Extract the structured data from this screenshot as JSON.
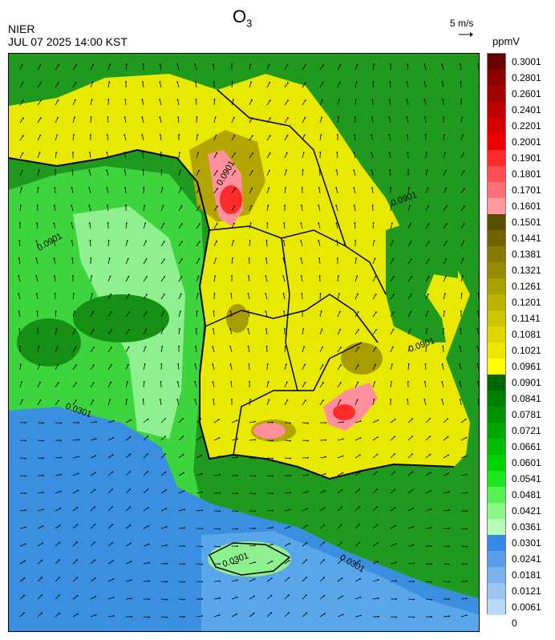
{
  "header": {
    "species": "O",
    "species_subscript": "3",
    "agency": "NIER",
    "timestamp": "JUL 07 2025 14:00 KST",
    "wind_scale_label": "5 m/s",
    "unit": "ppmV"
  },
  "map": {
    "contour_value_label": "0.0901",
    "contour_value_label_sea": "0.0301",
    "region": "Southern Korean Peninsula",
    "colors": {
      "sea_blue": "#3a8fe0",
      "deep_green": "#008a00",
      "green": "#22aa22",
      "bright_green": "#44dd44",
      "light_green": "#9cf49c",
      "yellow": "#e8e800",
      "olive_yellow": "#c8c000",
      "olive": "#9a8c00",
      "pink": "#ff9aa8",
      "red": "#ff2020"
    }
  },
  "colorbar": {
    "labels": [
      "0.3001",
      "0.2801",
      "0.2601",
      "0.2401",
      "0.2201",
      "0.2001",
      "0.1901",
      "0.1801",
      "0.1701",
      "0.1601",
      "0.1501",
      "0.1441",
      "0.1381",
      "0.1321",
      "0.1261",
      "0.1201",
      "0.1141",
      "0.1081",
      "0.1021",
      "0.0961",
      "0.0901",
      "0.0841",
      "0.0781",
      "0.0721",
      "0.0661",
      "0.0601",
      "0.0541",
      "0.0481",
      "0.0421",
      "0.0361",
      "0.0301",
      "0.0241",
      "0.0181",
      "0.0121",
      "0.0061",
      "0"
    ],
    "colors": [
      "#6b0000",
      "#8e0000",
      "#a30000",
      "#be0000",
      "#d60000",
      "#ee0000",
      "#ff2a2a",
      "#ff4f55",
      "#ff6f78",
      "#ff9aa3",
      "#5a4e00",
      "#716400",
      "#857900",
      "#998c00",
      "#ab9f00",
      "#beb200",
      "#cfc400",
      "#dfd600",
      "#eee600",
      "#ffff00",
      "#006600",
      "#007f00",
      "#009300",
      "#00a800",
      "#00bd00",
      "#00d200",
      "#1ee61e",
      "#55f055",
      "#88f888",
      "#b6fbb6",
      "#3389e6",
      "#5a9ee9",
      "#7cb3ee",
      "#9cc6f2",
      "#bbd9f6"
    ]
  }
}
